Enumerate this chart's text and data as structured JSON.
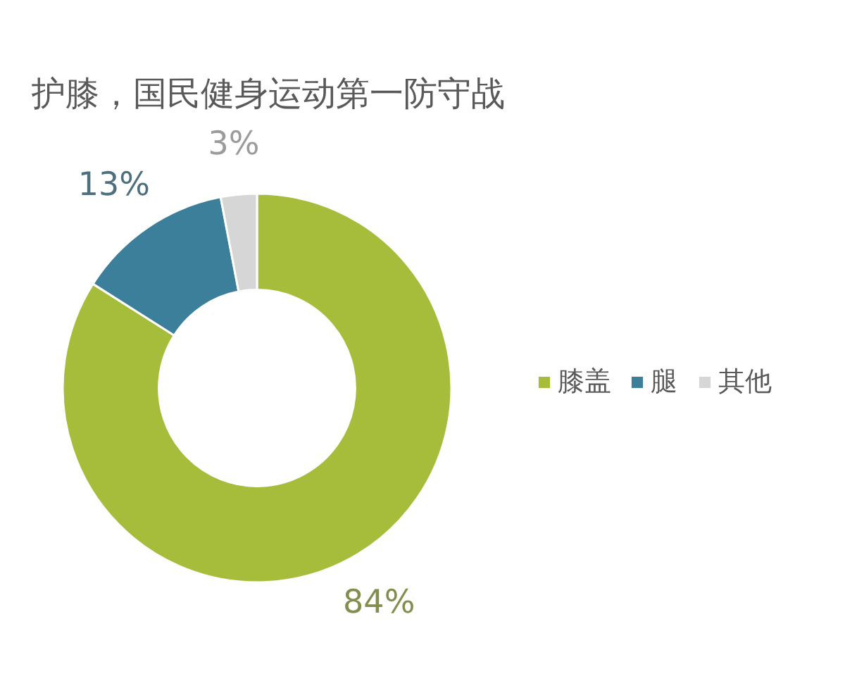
{
  "chart_data": {
    "type": "donut",
    "title": "护膝，国民健身运动第一防守战",
    "categories": [
      "膝盖",
      "腿",
      "其他"
    ],
    "values": [
      84,
      13,
      3
    ],
    "colors": [
      "#a6bd3c",
      "#3c7f9b",
      "#d6d6d6"
    ],
    "value_labels": [
      "84%",
      "13%",
      "3%"
    ],
    "legend": "right"
  }
}
